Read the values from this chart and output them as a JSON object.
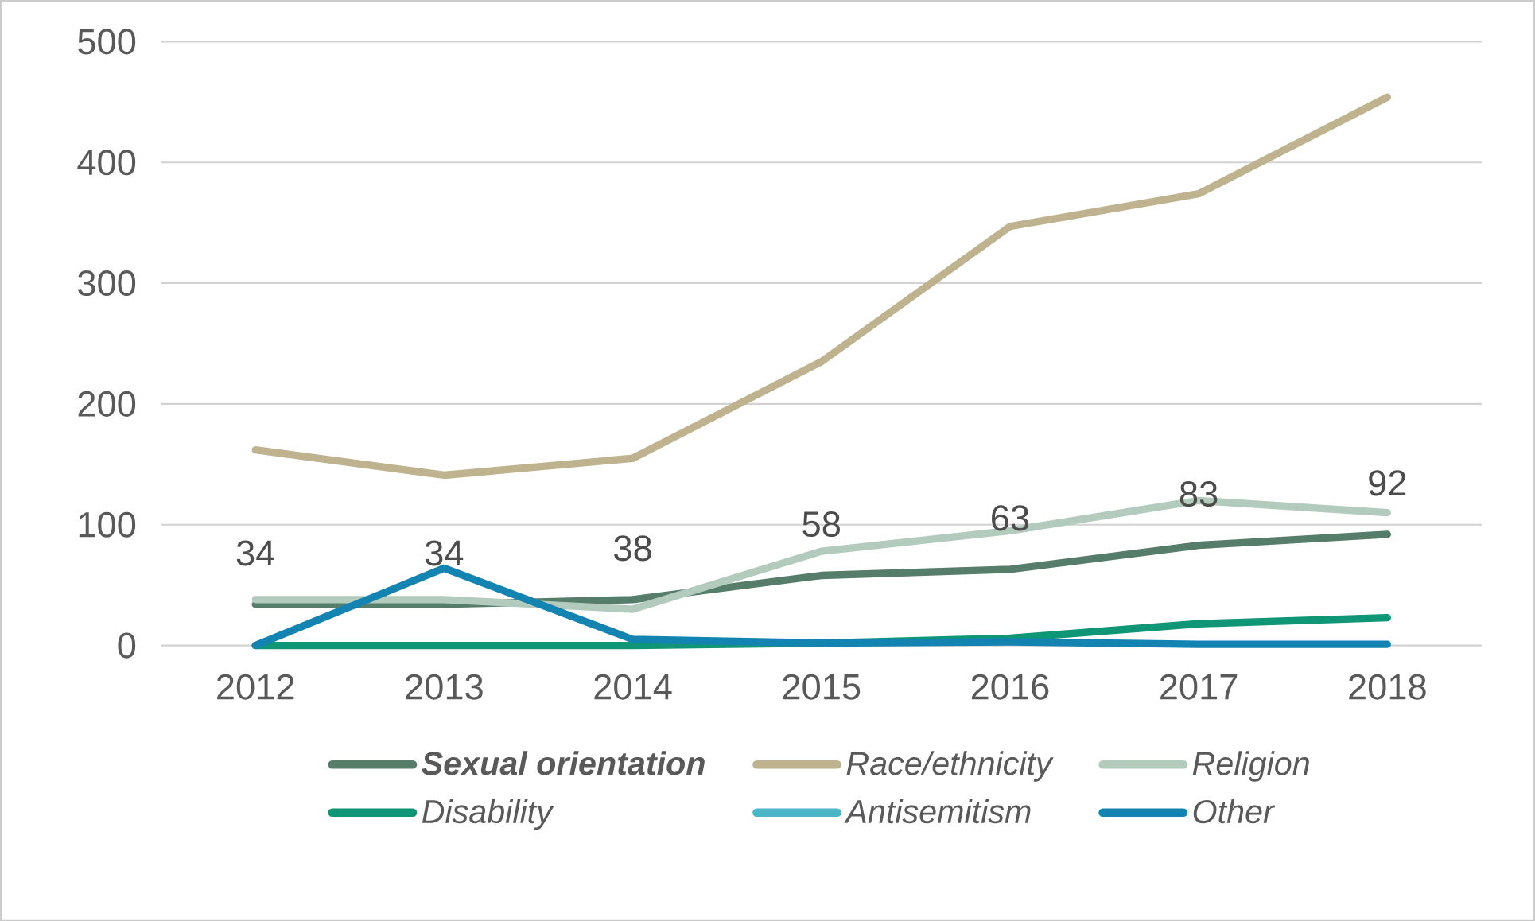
{
  "chart_data": {
    "type": "line",
    "categories": [
      "2012",
      "2013",
      "2014",
      "2015",
      "2016",
      "2017",
      "2018"
    ],
    "series": [
      {
        "name": "Sexual orientation",
        "color": "#567d6a",
        "values": [
          34,
          34,
          38,
          58,
          63,
          83,
          92
        ],
        "value_labels": [
          "34",
          "34",
          "38",
          "58",
          "63",
          "83",
          "92"
        ]
      },
      {
        "name": "Race/ethnicity",
        "color": "#bfb38f",
        "values": [
          162,
          141,
          155,
          235,
          347,
          374,
          454
        ]
      },
      {
        "name": "Religion",
        "color": "#b3cbbd",
        "values": [
          38,
          38,
          30,
          78,
          95,
          120,
          110
        ]
      },
      {
        "name": "Disability",
        "color": "#0f9676",
        "values": [
          0,
          0,
          0,
          2,
          6,
          18,
          23
        ]
      },
      {
        "name": "Antisemitism",
        "color": "#4bb5c8",
        "values": [
          null,
          null,
          null,
          null,
          null,
          null,
          null
        ]
      },
      {
        "name": "Other",
        "color": "#1384b2",
        "values": [
          0,
          64,
          5,
          2,
          3,
          1,
          1
        ]
      }
    ],
    "ylim": [
      0,
      500
    ],
    "yticks": [
      0,
      100,
      200,
      300,
      400,
      500
    ],
    "grid": "y",
    "legend": "bottom",
    "marker": "none",
    "line_style": "solid"
  }
}
